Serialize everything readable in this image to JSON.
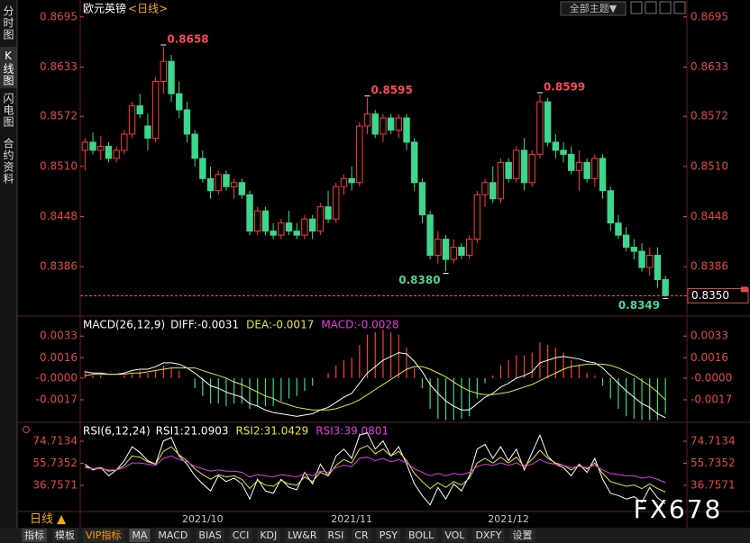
{
  "ui": {
    "sidebar": [
      "分时图",
      "K线图",
      "闪电图",
      "合约资料"
    ],
    "theme_button": "全部主题▼",
    "period_switch": "日线 ▲",
    "toolbar": [
      "指标",
      "模板",
      "VIP指标",
      "MA",
      "MACD",
      "BIAS",
      "CCI",
      "KDJ",
      "LW&R",
      "RSI",
      "CR",
      "PSY",
      "BOLL",
      "VOL",
      "DXFY",
      "设置"
    ],
    "watermark": "FX678"
  },
  "chart_data": [
    {
      "type": "candlestick",
      "title": "欧元英镑",
      "subtitle": "<日线>",
      "categories": [
        null,
        null,
        null,
        null,
        null,
        null,
        null,
        null,
        null,
        null,
        null,
        null,
        null,
        null,
        null,
        "2021/10",
        null,
        null,
        null,
        null,
        null,
        null,
        null,
        null,
        null,
        null,
        null,
        null,
        null,
        null,
        null,
        null,
        null,
        null,
        "2021/11",
        null,
        null,
        null,
        null,
        null,
        null,
        null,
        null,
        null,
        null,
        null,
        null,
        null,
        null,
        null,
        null,
        null,
        null,
        null,
        "2021/12",
        null,
        null,
        null,
        null,
        null,
        null,
        null,
        null,
        null,
        null,
        null,
        null,
        null,
        null,
        null,
        null,
        null,
        null,
        null,
        null
      ],
      "open": [
        0.853,
        0.854,
        0.853,
        0.8535,
        0.852,
        0.853,
        0.855,
        0.8585,
        0.856,
        0.8545,
        0.8615,
        0.864,
        0.86,
        0.858,
        0.855,
        0.852,
        0.8495,
        0.848,
        0.85,
        0.8485,
        0.849,
        0.8475,
        0.843,
        0.8455,
        0.843,
        0.8425,
        0.844,
        0.843,
        0.8425,
        0.8445,
        0.843,
        0.846,
        0.8445,
        0.8485,
        0.8495,
        0.849,
        0.856,
        0.8575,
        0.855,
        0.857,
        0.8555,
        0.857,
        0.854,
        0.849,
        0.845,
        0.84,
        0.842,
        0.8395,
        0.841,
        0.84,
        0.842,
        0.8475,
        0.849,
        0.847,
        0.8515,
        0.8495,
        0.853,
        0.849,
        0.8525,
        0.859,
        0.854,
        0.853,
        0.8525,
        0.8505,
        0.8515,
        0.8495,
        0.852,
        0.848,
        0.844,
        0.8425,
        0.841,
        0.8405,
        0.8385,
        0.84,
        0.837
      ],
      "high": [
        0.8545,
        0.8552,
        0.8548,
        0.854,
        0.8535,
        0.8555,
        0.859,
        0.86,
        0.8575,
        0.862,
        0.8658,
        0.8648,
        0.8615,
        0.859,
        0.8555,
        0.853,
        0.851,
        0.8505,
        0.8505,
        0.8495,
        0.8495,
        0.848,
        0.846,
        0.846,
        0.844,
        0.8445,
        0.8455,
        0.844,
        0.845,
        0.845,
        0.8465,
        0.848,
        0.849,
        0.85,
        0.851,
        0.8565,
        0.8595,
        0.858,
        0.8575,
        0.8575,
        0.8575,
        0.8575,
        0.8545,
        0.8495,
        0.8455,
        0.843,
        0.8425,
        0.842,
        0.8415,
        0.8425,
        0.848,
        0.8495,
        0.851,
        0.852,
        0.852,
        0.8535,
        0.8545,
        0.853,
        0.8599,
        0.8595,
        0.855,
        0.854,
        0.8535,
        0.853,
        0.852,
        0.8525,
        0.8525,
        0.8485,
        0.845,
        0.8435,
        0.842,
        0.8415,
        0.841,
        0.841,
        0.8375
      ],
      "low": [
        0.8505,
        0.8525,
        0.8518,
        0.8515,
        0.8515,
        0.8525,
        0.8545,
        0.857,
        0.853,
        0.854,
        0.86,
        0.859,
        0.857,
        0.854,
        0.851,
        0.849,
        0.847,
        0.8475,
        0.848,
        0.847,
        0.847,
        0.8425,
        0.8425,
        0.8425,
        0.842,
        0.842,
        0.8425,
        0.842,
        0.842,
        0.842,
        0.8425,
        0.844,
        0.844,
        0.8475,
        0.848,
        0.8485,
        0.855,
        0.8545,
        0.854,
        0.855,
        0.8545,
        0.853,
        0.848,
        0.844,
        0.8395,
        0.839,
        0.838,
        0.839,
        0.8395,
        0.8395,
        0.8415,
        0.846,
        0.8465,
        0.8465,
        0.849,
        0.849,
        0.848,
        0.8485,
        0.852,
        0.8535,
        0.852,
        0.8515,
        0.85,
        0.848,
        0.849,
        0.8485,
        0.847,
        0.843,
        0.842,
        0.8405,
        0.8395,
        0.838,
        0.8375,
        0.836,
        0.8349
      ],
      "close": [
        0.854,
        0.853,
        0.8535,
        0.852,
        0.853,
        0.855,
        0.8585,
        0.8575,
        0.8545,
        0.8615,
        0.864,
        0.86,
        0.858,
        0.855,
        0.852,
        0.8495,
        0.848,
        0.85,
        0.8485,
        0.849,
        0.8475,
        0.843,
        0.8455,
        0.843,
        0.8425,
        0.844,
        0.843,
        0.8425,
        0.8445,
        0.843,
        0.846,
        0.8445,
        0.8485,
        0.8495,
        0.849,
        0.856,
        0.8575,
        0.855,
        0.857,
        0.8555,
        0.857,
        0.854,
        0.849,
        0.845,
        0.84,
        0.842,
        0.8395,
        0.841,
        0.84,
        0.842,
        0.8475,
        0.849,
        0.847,
        0.8515,
        0.8495,
        0.853,
        0.849,
        0.8525,
        0.859,
        0.854,
        0.853,
        0.8525,
        0.8505,
        0.8515,
        0.8495,
        0.852,
        0.848,
        0.844,
        0.8425,
        0.841,
        0.8405,
        0.8385,
        0.84,
        0.837,
        0.835
      ],
      "up_color": "#ff3b3b",
      "down_color": "#3dd68c",
      "ylim": [
        0.8326,
        0.8697
      ],
      "yticks": [
        0.8695,
        0.8633,
        0.8572,
        {
          "value": 0.851,
          "label": "0.8510"
        },
        0.8448,
        0.8386
      ],
      "annotations": [
        0.8658,
        0.8595,
        0.8599,
        {
          "value": 0.838,
          "label": "0.8380"
        },
        0.8349
      ],
      "last_price": {
        "value": 0.835,
        "label": "0.8350"
      }
    },
    {
      "type": "macd",
      "title": "MACD(26,12,9)",
      "up_color": "#ff3b3b",
      "down_color": "#3dd68c",
      "ylim": [
        -0.0034,
        0.0048
      ],
      "yticks": [
        0.0033,
        0.0016,
        {
          "value": 0,
          "label": "-0.0000"
        },
        -0.0017
      ],
      "series": [
        {
          "name": "DIFF:-0.0031",
          "color": "#ffffff",
          "kind": "line",
          "values": [
            0.0005,
            0.0004,
            0.0004,
            0.0003,
            0.0003,
            0.0004,
            0.0006,
            0.0007,
            0.0007,
            0.0009,
            0.0012,
            0.0012,
            0.0011,
            0.0008,
            0.0004,
            -0.0001,
            -0.0006,
            -0.0008,
            -0.0011,
            -0.0013,
            -0.0015,
            -0.002,
            -0.0022,
            -0.0025,
            -0.0027,
            -0.0028,
            -0.0029,
            -0.003,
            -0.0029,
            -0.0028,
            -0.0025,
            -0.0023,
            -0.0019,
            -0.0015,
            -0.0012,
            -0.0004,
            0.0004,
            0.0009,
            0.0014,
            0.0017,
            0.002,
            0.0019,
            0.0013,
            0.0005,
            -0.0005,
            -0.0012,
            -0.0018,
            -0.0022,
            -0.0025,
            -0.0025,
            -0.002,
            -0.0015,
            -0.0012,
            -0.0007,
            -0.0004,
            0.0,
            0.0002,
            0.0005,
            0.0012,
            0.0014,
            0.0016,
            0.0017,
            0.0016,
            0.0015,
            0.0013,
            0.0012,
            0.0008,
            0.0002,
            -0.0004,
            -0.001,
            -0.0015,
            -0.002,
            -0.0023,
            -0.0028,
            -0.0031
          ]
        },
        {
          "name": "DEA:-0.0017",
          "color": "#e6e640",
          "kind": "line",
          "values": [
            0.0002,
            0.0003,
            0.0003,
            0.0003,
            0.0003,
            0.0003,
            0.0004,
            0.0004,
            0.0005,
            0.0006,
            0.0007,
            0.0008,
            0.0008,
            0.0008,
            0.0008,
            0.0006,
            0.0004,
            0.0002,
            0.0,
            -0.0003,
            -0.0005,
            -0.0008,
            -0.0011,
            -0.0014,
            -0.0016,
            -0.0019,
            -0.0021,
            -0.0023,
            -0.0024,
            -0.0025,
            -0.0025,
            -0.0025,
            -0.0024,
            -0.0022,
            -0.002,
            -0.0017,
            -0.0013,
            -0.0009,
            -0.0005,
            -0.0001,
            0.0003,
            0.0007,
            0.0009,
            0.0009,
            0.0007,
            0.0004,
            0.0001,
            -0.0003,
            -0.0007,
            -0.001,
            -0.0012,
            -0.0013,
            -0.0013,
            -0.0012,
            -0.0011,
            -0.0009,
            -0.0007,
            -0.0005,
            -0.0002,
            0.0001,
            0.0004,
            0.0007,
            0.0009,
            0.001,
            0.0011,
            0.0011,
            0.0011,
            0.001,
            0.0008,
            0.0005,
            0.0002,
            -0.0002,
            -0.0006,
            -0.0011,
            -0.0017
          ]
        },
        {
          "name": "MACD:-0.0028",
          "color": "#e040e0",
          "kind": "histogram",
          "values": [
            0.0006,
            0.0002,
            0.0002,
            0,
            0,
            0.0002,
            0.0004,
            0.0006,
            0.0004,
            0.0006,
            0.001,
            0.0008,
            0.0006,
            0,
            -0.0008,
            -0.0014,
            -0.002,
            -0.002,
            -0.0022,
            -0.002,
            -0.002,
            -0.0024,
            -0.0022,
            -0.0022,
            -0.0022,
            -0.0018,
            -0.0016,
            -0.0014,
            -0.001,
            -0.0006,
            0,
            0.0004,
            0.001,
            0.0014,
            0.0016,
            0.0026,
            0.0034,
            0.0036,
            0.0038,
            0.0036,
            0.0034,
            0.0024,
            0.0008,
            -0.0008,
            -0.0024,
            -0.0032,
            -0.0033,
            -0.0033,
            -0.0032,
            -0.003,
            -0.0016,
            -0.0004,
            0.0002,
            0.001,
            0.0014,
            0.0018,
            0.0018,
            0.002,
            0.0028,
            0.0026,
            0.0024,
            0.002,
            0.0014,
            0.001,
            0.0004,
            0.0002,
            -0.0006,
            -0.0016,
            -0.0024,
            -0.003,
            -0.0032,
            -0.0033,
            -0.0033,
            -0.0033,
            -0.0028
          ]
        }
      ]
    },
    {
      "type": "line",
      "title": "RSI(6,12,24)",
      "ylim": [
        14.3,
        90.2
      ],
      "yticks": [
        74.7134,
        55.7352,
        36.7571
      ],
      "series": [
        {
          "name": "RSI1:21.0903",
          "color": "#ffffff",
          "values": [
            55,
            50,
            52,
            45,
            50,
            58,
            70,
            65,
            58,
            55,
            75,
            78,
            62,
            55,
            45,
            38,
            32,
            45,
            40,
            43,
            38,
            25,
            42,
            32,
            30,
            42,
            35,
            33,
            48,
            38,
            55,
            45,
            62,
            68,
            60,
            80,
            82,
            68,
            75,
            62,
            70,
            55,
            38,
            28,
            20,
            35,
            25,
            38,
            32,
            45,
            68,
            72,
            60,
            70,
            58,
            68,
            50,
            65,
            80,
            62,
            55,
            52,
            45,
            55,
            48,
            60,
            42,
            30,
            28,
            25,
            27,
            22,
            35,
            26,
            21.0903
          ]
        },
        {
          "name": "RSI2:31.0429",
          "color": "#e6e640",
          "values": [
            53,
            51,
            52,
            49,
            50,
            54,
            62,
            61,
            57,
            55,
            66,
            70,
            63,
            58,
            51,
            46,
            42,
            46,
            44,
            45,
            42,
            34,
            41,
            37,
            36,
            41,
            38,
            37,
            44,
            40,
            48,
            45,
            54,
            59,
            56,
            68,
            71,
            64,
            68,
            62,
            66,
            58,
            47,
            40,
            34,
            39,
            35,
            40,
            37,
            43,
            56,
            60,
            56,
            61,
            56,
            61,
            53,
            59,
            67,
            60,
            56,
            54,
            50,
            54,
            51,
            56,
            47,
            40,
            38,
            36,
            37,
            34,
            38,
            34,
            31.0429
          ]
        },
        {
          "name": "RSI3:39.0801",
          "color": "#e040e0",
          "values": [
            52,
            51,
            51,
            50,
            50,
            52,
            56,
            56,
            55,
            54,
            60,
            62,
            59,
            57,
            53,
            51,
            49,
            50,
            49,
            49,
            48,
            44,
            46,
            45,
            44,
            46,
            45,
            44,
            47,
            45,
            49,
            48,
            52,
            54,
            53,
            60,
            61,
            58,
            60,
            57,
            59,
            56,
            51,
            48,
            45,
            47,
            45,
            47,
            46,
            48,
            53,
            55,
            54,
            56,
            54,
            56,
            53,
            55,
            59,
            56,
            55,
            54,
            52,
            53,
            52,
            54,
            50,
            47,
            46,
            45,
            45,
            43,
            44,
            42,
            39.0801
          ]
        }
      ]
    }
  ]
}
